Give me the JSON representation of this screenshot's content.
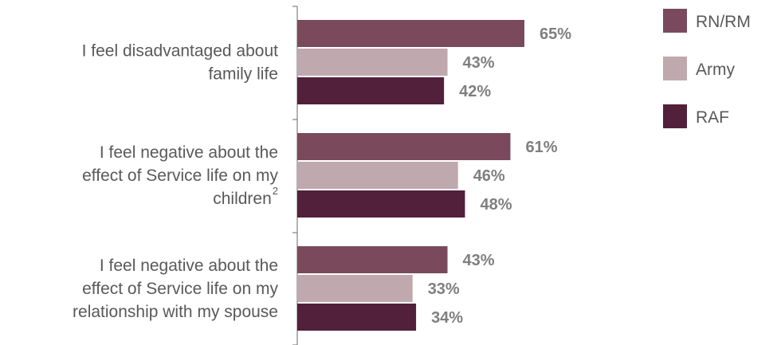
{
  "chart_data": {
    "type": "bar",
    "orientation": "horizontal",
    "categories": [
      [
        "I feel disadvantaged about",
        "family life"
      ],
      [
        "I feel negative about the",
        "effect of Service life on my",
        "children"
      ],
      [
        "I feel negative about the",
        "effect of Service life on my",
        "relationship with my spouse"
      ]
    ],
    "category_footnotes": [
      "",
      "2",
      ""
    ],
    "series": [
      {
        "name": "RN/RM",
        "values": [
          65,
          61,
          43
        ],
        "labels": [
          "65%",
          "61%",
          "43%"
        ],
        "color": "#7a4a5c"
      },
      {
        "name": "Army",
        "values": [
          43,
          46,
          33
        ],
        "labels": [
          "43%",
          "46%",
          "33%"
        ],
        "color": "#bfa8ae"
      },
      {
        "name": "RAF",
        "values": [
          42,
          48,
          34
        ],
        "labels": [
          "42%",
          "48%",
          "34%"
        ],
        "color": "#52203a"
      }
    ],
    "xlim": [
      0,
      100
    ],
    "grid": false,
    "legend_position": "top-right"
  }
}
